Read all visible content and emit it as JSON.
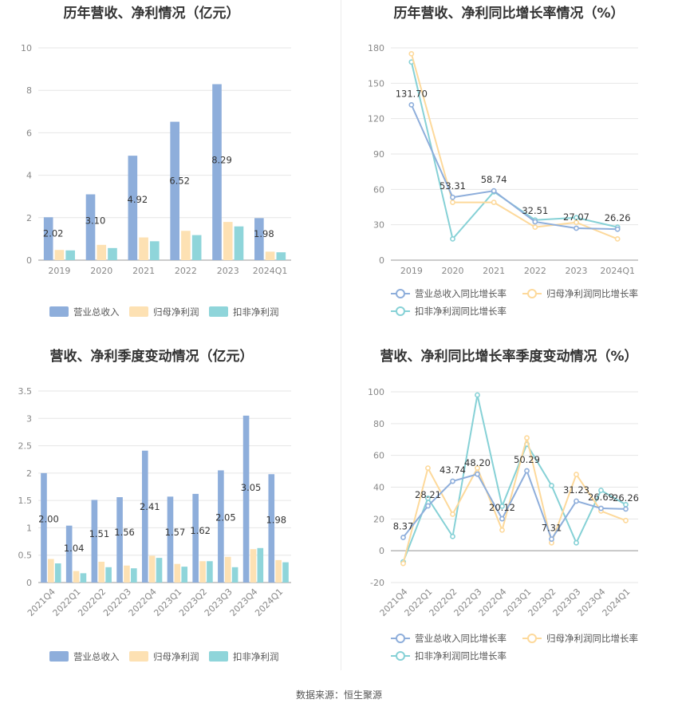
{
  "source": "数据来源：恒生聚源",
  "colors": {
    "revenue": "#8eaedb",
    "parent_profit": "#fde1b3",
    "deducted_profit": "#8fd5da",
    "revenue_line": "#8eaedb",
    "parent_line": "#fdd99b",
    "deducted_line": "#86d1d6"
  },
  "chart_data": [
    {
      "type": "bar",
      "title": "历年营收、净利情况（亿元）",
      "categories": [
        "2019",
        "2020",
        "2021",
        "2022",
        "2023",
        "2024Q1"
      ],
      "ylim": [
        0,
        10
      ],
      "yticks": [
        "0",
        "2",
        "4",
        "6",
        "8",
        "10"
      ],
      "legend_position": "bottom",
      "series": [
        {
          "name": "营业总收入",
          "color_key": "revenue",
          "values": [
            2.02,
            3.1,
            4.92,
            6.52,
            8.29,
            1.98
          ],
          "labels": [
            "2.02",
            "3.10",
            "4.92",
            "6.52",
            "8.29",
            "1.98"
          ]
        },
        {
          "name": "归母净利润",
          "color_key": "parent_profit",
          "values": [
            0.48,
            0.72,
            1.07,
            1.38,
            1.8,
            0.4
          ]
        },
        {
          "name": "扣非净利润",
          "color_key": "deducted_profit",
          "values": [
            0.46,
            0.57,
            0.89,
            1.18,
            1.59,
            0.37
          ]
        }
      ]
    },
    {
      "type": "line",
      "title": "历年营收、净利同比增长率情况（%）",
      "categories": [
        "2019",
        "2020",
        "2021",
        "2022",
        "2023",
        "2024Q1"
      ],
      "ylim": [
        0,
        180
      ],
      "yticks": [
        "0",
        "30",
        "60",
        "90",
        "120",
        "150",
        "180"
      ],
      "legend_position": "bottom",
      "series": [
        {
          "name": "营业总收入同比增长率",
          "color_key": "revenue_line",
          "values": [
            131.7,
            53.31,
            58.74,
            32.51,
            27.07,
            26.26
          ],
          "labels": [
            "131.70",
            "53.31",
            "58.74",
            "32.51",
            "27.07",
            "26.26"
          ]
        },
        {
          "name": "归母净利润同比增长率",
          "color_key": "parent_line",
          "values": [
            175,
            49,
            49,
            28,
            32,
            18
          ]
        },
        {
          "name": "扣非净利润同比增长率",
          "color_key": "deducted_line",
          "values": [
            168,
            18,
            58,
            34,
            36,
            28
          ]
        }
      ]
    },
    {
      "type": "bar",
      "title": "营收、净利季度变动情况（亿元）",
      "categories": [
        "2021Q4",
        "2022Q1",
        "2022Q2",
        "2022Q3",
        "2022Q4",
        "2023Q1",
        "2023Q2",
        "2023Q3",
        "2023Q4",
        "2024Q1"
      ],
      "ylim": [
        0,
        3.5
      ],
      "yticks": [
        "0",
        "0.5",
        "1",
        "1.5",
        "2",
        "2.5",
        "3",
        "3.5"
      ],
      "legend_position": "bottom",
      "series": [
        {
          "name": "营业总收入",
          "color_key": "revenue",
          "values": [
            2.0,
            1.04,
            1.51,
            1.56,
            2.41,
            1.57,
            1.62,
            2.05,
            3.05,
            1.98
          ],
          "labels": [
            "2.00",
            "1.04",
            "1.51",
            "1.56",
            "2.41",
            "1.57",
            "1.62",
            "2.05",
            "3.05",
            "1.98"
          ]
        },
        {
          "name": "归母净利润",
          "color_key": "parent_profit",
          "values": [
            0.43,
            0.21,
            0.38,
            0.31,
            0.49,
            0.34,
            0.39,
            0.47,
            0.61,
            0.41
          ]
        },
        {
          "name": "扣非净利润",
          "color_key": "deducted_profit",
          "values": [
            0.35,
            0.17,
            0.28,
            0.26,
            0.45,
            0.29,
            0.39,
            0.28,
            0.63,
            0.37
          ]
        }
      ]
    },
    {
      "type": "line",
      "title": "营收、净利同比增长率季度变动情况（%）",
      "categories": [
        "2021Q4",
        "2022Q1",
        "2022Q2",
        "2022Q3",
        "2022Q4",
        "2023Q1",
        "2023Q2",
        "2023Q3",
        "2023Q4",
        "2024Q1"
      ],
      "ylim": [
        -20,
        100
      ],
      "yticks": [
        "-20",
        "0",
        "20",
        "40",
        "60",
        "80",
        "100"
      ],
      "legend_position": "bottom",
      "series": [
        {
          "name": "营业总收入同比增长率",
          "color_key": "revenue_line",
          "values": [
            8.37,
            28.21,
            43.74,
            48.2,
            20.12,
            50.29,
            7.31,
            31.23,
            26.69,
            26.26
          ],
          "labels": [
            "8.37",
            "28.21",
            "43.74",
            "48.20",
            "20.12",
            "50.29",
            "7.31",
            "31.23",
            "26.69",
            "26.26"
          ]
        },
        {
          "name": "归母净利润同比增长率",
          "color_key": "parent_line",
          "values": [
            -8,
            52,
            23,
            52,
            13,
            71,
            5,
            48,
            25,
            19
          ]
        },
        {
          "name": "扣非净利润同比增长率",
          "color_key": "deducted_line",
          "values": [
            -7,
            33,
            9,
            98,
            28,
            67,
            41,
            5,
            38,
            29
          ]
        }
      ]
    }
  ]
}
